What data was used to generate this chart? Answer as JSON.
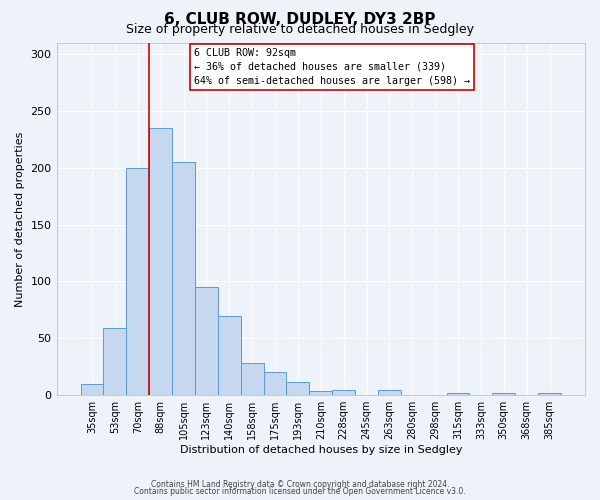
{
  "title": "6, CLUB ROW, DUDLEY, DY3 2BP",
  "subtitle": "Size of property relative to detached houses in Sedgley",
  "xlabel": "Distribution of detached houses by size in Sedgley",
  "ylabel": "Number of detached properties",
  "bar_labels": [
    "35sqm",
    "53sqm",
    "70sqm",
    "88sqm",
    "105sqm",
    "123sqm",
    "140sqm",
    "158sqm",
    "175sqm",
    "193sqm",
    "210sqm",
    "228sqm",
    "245sqm",
    "263sqm",
    "280sqm",
    "298sqm",
    "315sqm",
    "333sqm",
    "350sqm",
    "368sqm",
    "385sqm"
  ],
  "bar_values": [
    10,
    59,
    200,
    235,
    205,
    95,
    70,
    28,
    20,
    12,
    4,
    5,
    0,
    5,
    0,
    0,
    2,
    0,
    2,
    0,
    2
  ],
  "bar_color": "#c5d8f0",
  "bar_edge_color": "#5b9bd5",
  "ylim": [
    0,
    310
  ],
  "yticks": [
    0,
    50,
    100,
    150,
    200,
    250,
    300
  ],
  "red_line_index": 3,
  "marker_label": "6 CLUB ROW: 92sqm",
  "annotation_line1": "← 36% of detached houses are smaller (339)",
  "annotation_line2": "64% of semi-detached houses are larger (598) →",
  "red_line_color": "#cc0000",
  "annotation_box_color": "#ffffff",
  "annotation_box_edge": "#cc0000",
  "footer_line1": "Contains HM Land Registry data © Crown copyright and database right 2024.",
  "footer_line2": "Contains public sector information licensed under the Open Government Licence v3.0.",
  "background_color": "#eef2f9",
  "grid_color": "#ffffff",
  "title_fontsize": 11,
  "subtitle_fontsize": 9,
  "ylabel_fontsize": 8,
  "xlabel_fontsize": 8,
  "tick_fontsize": 7,
  "footer_fontsize": 5.5
}
